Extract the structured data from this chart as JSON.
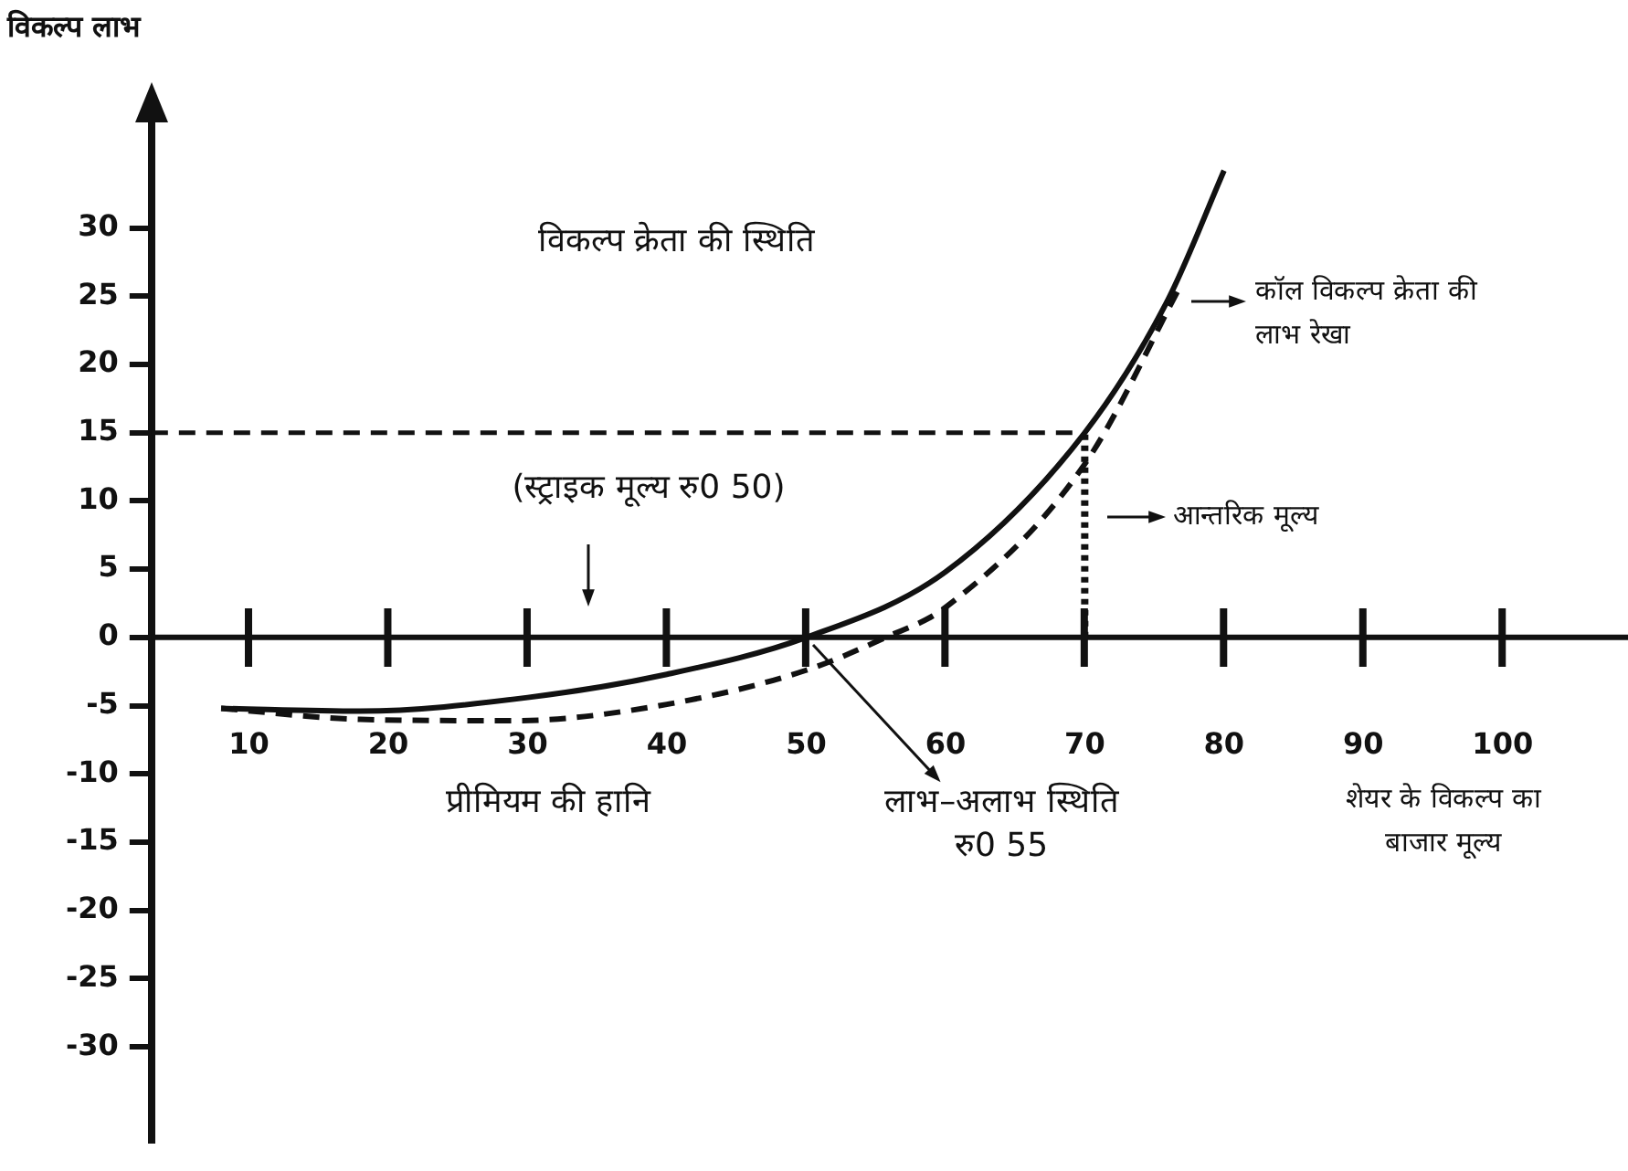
{
  "chart_data": {
    "type": "line",
    "xlabel": "शेयर के विकल्प का बाजार मूल्य",
    "ylabel": "विकल्प लाभ",
    "xlim": [
      3,
      109
    ],
    "ylim": [
      -37,
      38
    ],
    "xticks": [
      10,
      20,
      30,
      40,
      50,
      60,
      70,
      80,
      90,
      100
    ],
    "yticks": [
      30,
      25,
      20,
      15,
      10,
      5,
      0,
      -5,
      -10,
      -15,
      -20,
      -25,
      -30
    ],
    "grid": false,
    "legend": false,
    "marker": "none",
    "series": [
      {
        "color": "#111111",
        "line_style": "solid",
        "x": [
          8,
          18,
          30,
          40,
          50,
          60,
          70,
          76,
          80
        ],
        "values": [
          -5.2,
          -5.4,
          -4.4,
          -2.7,
          0,
          4.8,
          15,
          24.8,
          34.2
        ]
      },
      {
        "color": "#111111",
        "line_style": "dashed",
        "x": [
          8,
          18,
          29,
          40,
          50,
          55.7,
          60,
          70,
          77
        ],
        "values": [
          -5.2,
          -6,
          -6.1,
          -4.9,
          -2.4,
          0,
          2.2,
          12.7,
          26
        ]
      }
    ],
    "ref_lines": [
      {
        "axis": "y",
        "value": 0,
        "line_style": "solid",
        "color": "#111111"
      },
      {
        "axis": "y",
        "value": 15,
        "line_style": "dashed",
        "color": "#111111"
      },
      {
        "axis": "x",
        "value": 70,
        "line_style": "dotted",
        "color": "#111111"
      }
    ],
    "annotations": [
      "विकल्प क्रेता की स्थिति",
      "(स्ट्राइक मूल्य रु0 50)",
      "कॉल विकल्प क्रेता की लाभ रेखा",
      "आन्तरिक मूल्य",
      "प्रीमियम की हानि",
      {
        "text": "लाभ–अलाभ स्थिति रु0 55",
        "x": 50,
        "y": 0
      }
    ]
  }
}
